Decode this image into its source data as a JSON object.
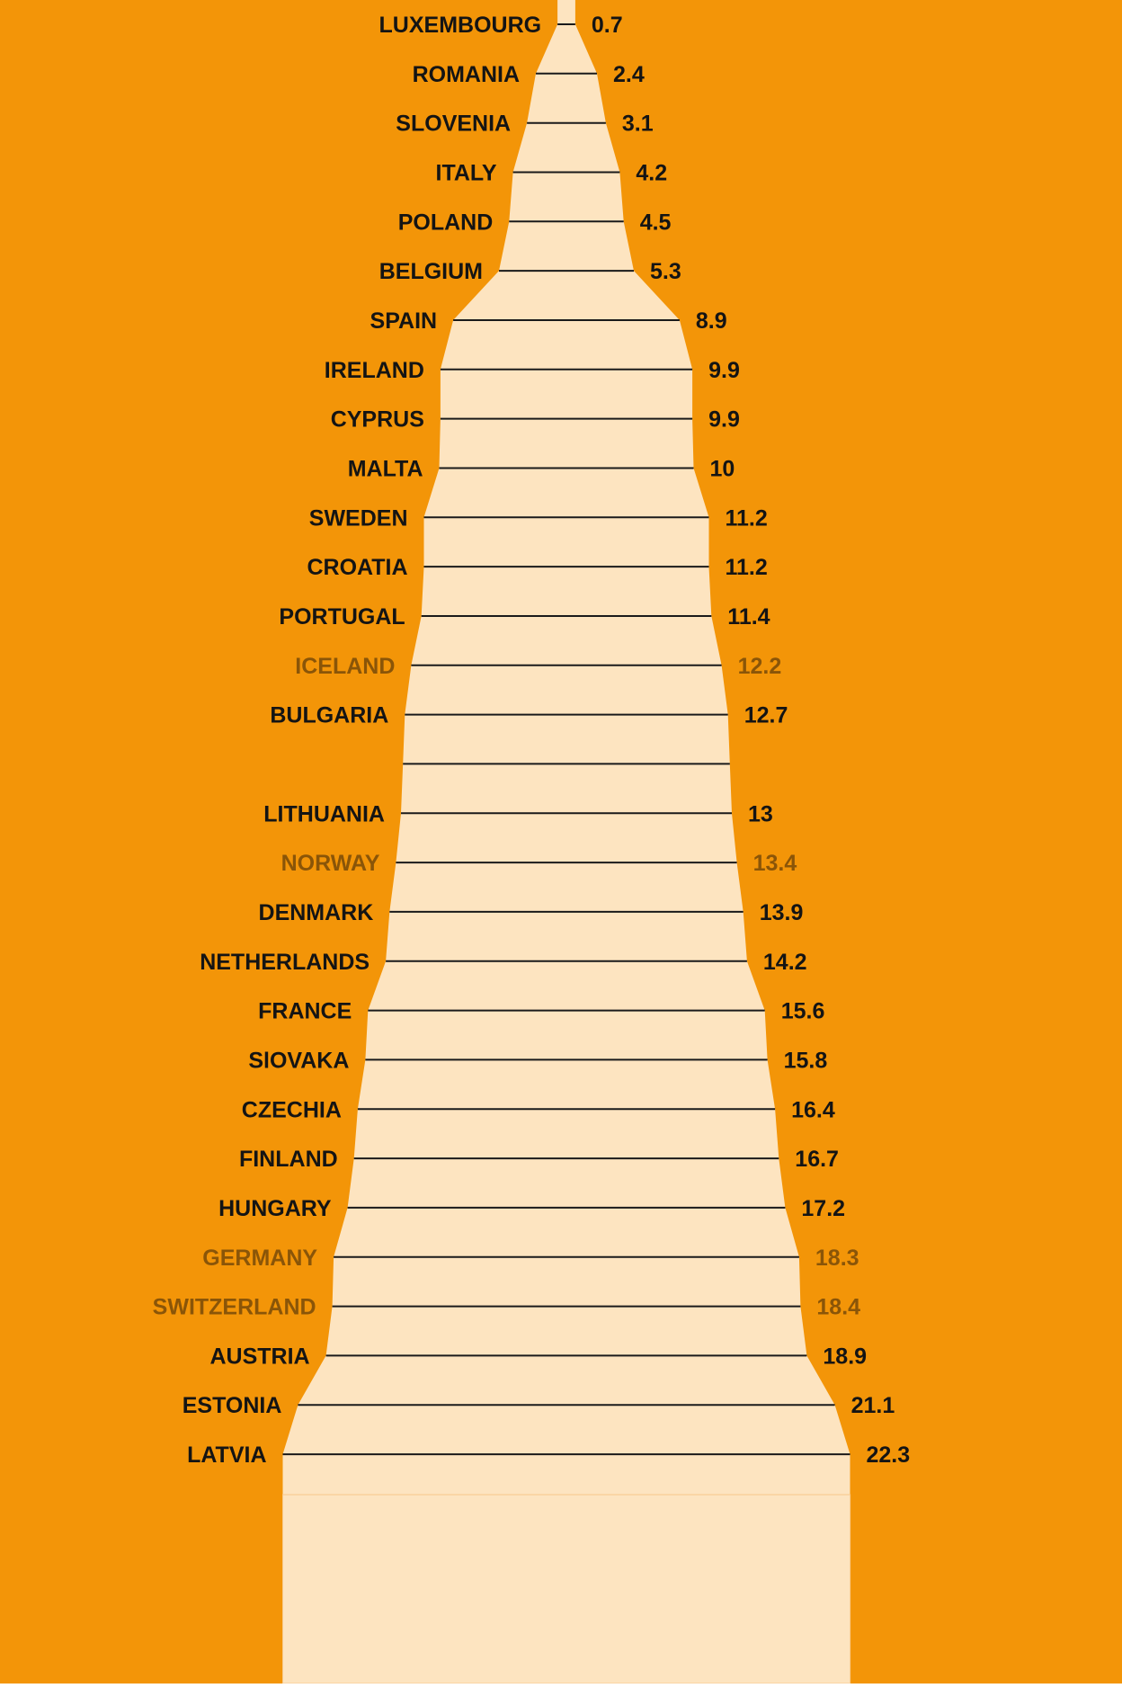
{
  "colors": {
    "background": "#f39508",
    "funnel_fill": "#fde4c0",
    "row_line": "#1a1a1a",
    "text_member": "#141414",
    "text_non_member": "#8a5508"
  },
  "chart_data": {
    "type": "bar",
    "layout": "mirrored-funnel",
    "title": "",
    "xlabel": "",
    "ylabel": "",
    "categories": [
      "LUXEMBOURG",
      "ROMANIA",
      "SLOVENIA",
      "ITALY",
      "POLAND",
      "BELGIUM",
      "SPAIN",
      "IRELAND",
      "CYPRUS",
      "MALTA",
      "SWEDEN",
      "CROATIA",
      "PORTUGAL",
      "ICELAND",
      "BULGARIA",
      "",
      "LITHUANIA",
      "NORWAY",
      "DENMARK",
      "NETHERLANDS",
      "FRANCE",
      "SlOVAKA",
      "CZECHIA",
      "FINLAND",
      "HUNGARY",
      "GERMANY",
      "SWITZERLAND",
      "AUSTRIA",
      "ESTONIA",
      "LATVIA"
    ],
    "values": [
      0.7,
      2.4,
      3.1,
      4.2,
      4.5,
      5.3,
      8.9,
      9.9,
      9.9,
      10,
      11.2,
      11.2,
      11.4,
      12.2,
      12.7,
      12.85,
      13,
      13.4,
      13.9,
      14.2,
      15.6,
      15.8,
      16.4,
      16.7,
      17.2,
      18.3,
      18.4,
      18.9,
      21.1,
      22.3
    ],
    "value_labels": [
      "0.7",
      "2.4",
      "3.1",
      "4.2",
      "4.5",
      "5.3",
      "8.9",
      "9.9",
      "9.9",
      "10",
      "11.2",
      "11.2",
      "11.4",
      "12.2",
      "12.7",
      "",
      "13",
      "13.4",
      "13.9",
      "14.2",
      "15.6",
      "15.8",
      "16.4",
      "16.7",
      "17.2",
      "18.3",
      "18.4",
      "18.9",
      "21.1",
      "22.3"
    ],
    "non_eu": [
      false,
      false,
      false,
      false,
      false,
      false,
      false,
      false,
      false,
      false,
      false,
      false,
      false,
      true,
      false,
      false,
      false,
      true,
      false,
      false,
      false,
      false,
      false,
      false,
      false,
      true,
      true,
      false,
      false,
      false
    ],
    "xlim": [
      0,
      22.3
    ],
    "grid": false,
    "legend": "none"
  }
}
